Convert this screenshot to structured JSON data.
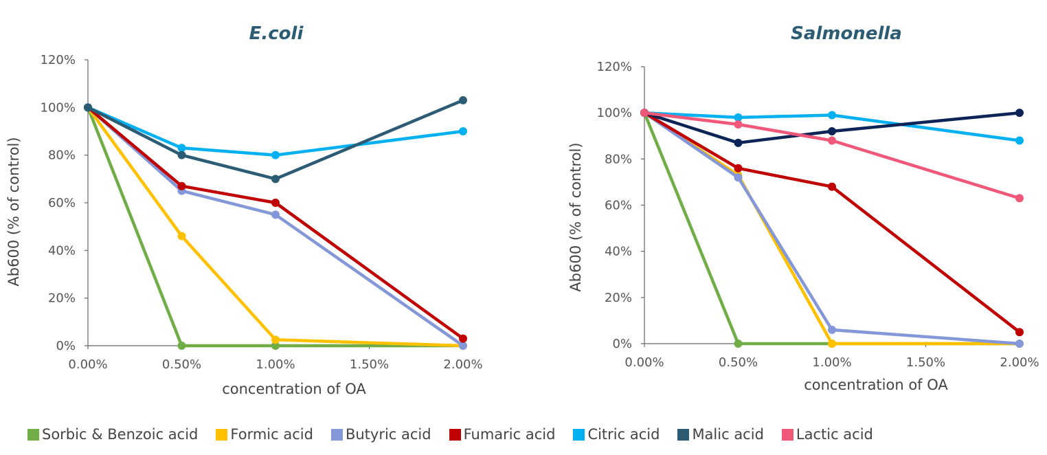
{
  "legend": [
    {
      "name": "Sorbic & Benzoic acid",
      "color": "#70ad47"
    },
    {
      "name": "Formic acid",
      "color": "#ffc000"
    },
    {
      "name": "Butyric acid",
      "color": "#8497d8"
    },
    {
      "name": "Fumaric acid",
      "color": "#c00000"
    },
    {
      "name": "Citric acid",
      "color": "#00b0f0"
    },
    {
      "name": "Malic acid",
      "color": "#2b5c74"
    },
    {
      "name": "Lactic acid",
      "color": "#f0587a"
    }
  ],
  "chart_data": [
    {
      "type": "line",
      "title": "E.coli",
      "xlabel": "concentration of OA",
      "ylabel": "Ab600 (% of control)",
      "x_ticks": [
        "0.00%",
        "0.50%",
        "1.00%",
        "1.50%",
        "2.00%"
      ],
      "y_ticks": [
        "0%",
        "20%",
        "40%",
        "60%",
        "80%",
        "100%",
        "120%"
      ],
      "xlim": [
        0,
        2
      ],
      "ylim": [
        0,
        120
      ],
      "x": [
        0,
        0.5,
        1,
        2
      ],
      "series": [
        {
          "name": "Sorbic & Benzoic acid",
          "color": "#70ad47",
          "values": [
            100,
            0,
            0,
            0
          ]
        },
        {
          "name": "Formic acid",
          "color": "#ffc000",
          "values": [
            100,
            46,
            2.5,
            0
          ]
        },
        {
          "name": "Butyric acid",
          "color": "#8497d8",
          "values": [
            100,
            65,
            55,
            0
          ]
        },
        {
          "name": "Fumaric acid",
          "color": "#c00000",
          "values": [
            100,
            67,
            60,
            3
          ]
        },
        {
          "name": "Citric acid",
          "color": "#00b0f0",
          "values": [
            100,
            83,
            80,
            90
          ]
        },
        {
          "name": "Malic acid",
          "color": "#2b5c74",
          "values": [
            100,
            80,
            70,
            103
          ]
        }
      ]
    },
    {
      "type": "line",
      "title": "Salmonella",
      "xlabel": "concentration of OA",
      "ylabel": "Ab600 (% of control)",
      "x_ticks": [
        "0.00%",
        "0.50%",
        "1.00%",
        "1.50%",
        "2.00%"
      ],
      "y_ticks": [
        "0%",
        "20%",
        "40%",
        "60%",
        "80%",
        "100%",
        "120%"
      ],
      "xlim": [
        0,
        2
      ],
      "ylim": [
        0,
        120
      ],
      "x": [
        0,
        0.5,
        1,
        2
      ],
      "series": [
        {
          "name": "Sorbic & Benzoic acid",
          "color": "#70ad47",
          "values": [
            100,
            0,
            0,
            0
          ]
        },
        {
          "name": "Formic acid",
          "color": "#ffc000",
          "values": [
            100,
            73,
            0,
            0
          ]
        },
        {
          "name": "Butyric acid",
          "color": "#8497d8",
          "values": [
            100,
            72,
            6,
            0
          ]
        },
        {
          "name": "Fumaric acid",
          "color": "#c00000",
          "values": [
            100,
            76,
            68,
            5
          ]
        },
        {
          "name": "Citric acid",
          "color": "#00b0f0",
          "values": [
            100,
            98,
            99,
            88
          ]
        },
        {
          "name": "Malic acid",
          "color": "#0d2457",
          "values": [
            100,
            87,
            92,
            100
          ]
        },
        {
          "name": "Lactic acid",
          "color": "#f0587a",
          "values": [
            100,
            95,
            88,
            63
          ]
        }
      ]
    }
  ]
}
